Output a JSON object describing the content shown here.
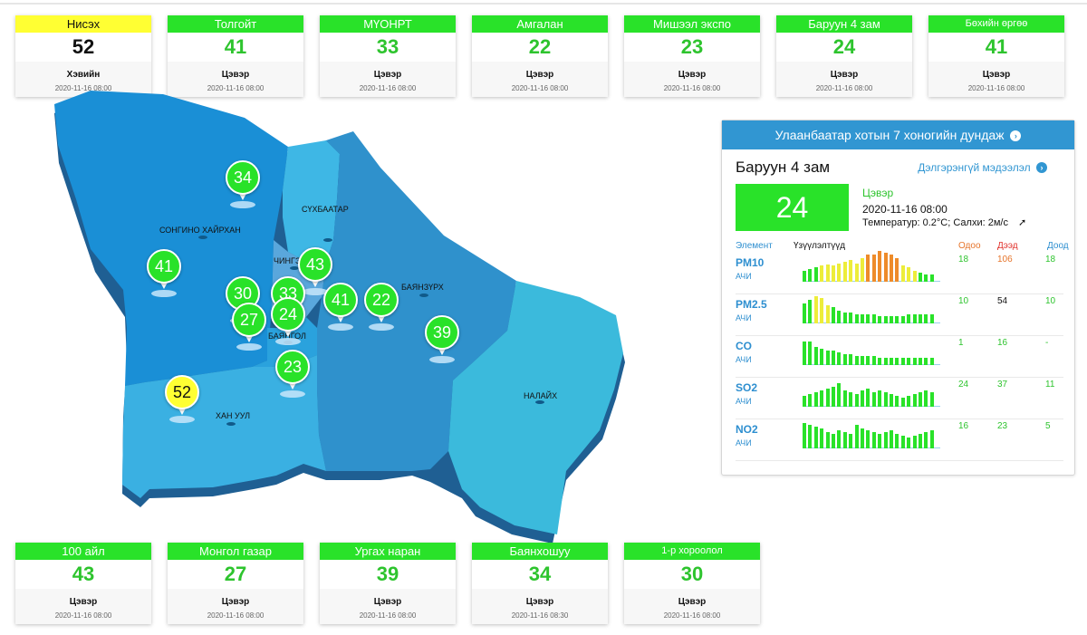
{
  "top_stations": [
    {
      "name": "Нисэх",
      "value": "52",
      "status": "Хэвийн",
      "time": "2020-11-16 08:00",
      "color": "#ffff33",
      "text_color": "#111111",
      "header_text": "#111111"
    },
    {
      "name": "Толгойт",
      "value": "41",
      "status": "Цэвэр",
      "time": "2020-11-16 08:00",
      "color": "#29e229",
      "text_color": "#2ec42e",
      "header_text": "#ffffff"
    },
    {
      "name": "МҮОНРТ",
      "value": "33",
      "status": "Цэвэр",
      "time": "2020-11-16 08:00",
      "color": "#29e229",
      "text_color": "#2ec42e",
      "header_text": "#ffffff"
    },
    {
      "name": "Амгалан",
      "value": "22",
      "status": "Цэвэр",
      "time": "2020-11-16 08:00",
      "color": "#29e229",
      "text_color": "#2ec42e",
      "header_text": "#ffffff"
    },
    {
      "name": "Мишээл экспо",
      "value": "23",
      "status": "Цэвэр",
      "time": "2020-11-16 08:00",
      "color": "#29e229",
      "text_color": "#2ec42e",
      "header_text": "#ffffff"
    },
    {
      "name": "Баруун 4 зам",
      "value": "24",
      "status": "Цэвэр",
      "time": "2020-11-16 08:00",
      "color": "#29e229",
      "text_color": "#2ec42e",
      "header_text": "#ffffff"
    },
    {
      "name": "Бөхийн өргөө",
      "value": "41",
      "status": "Цэвэр",
      "time": "2020-11-16 08:00",
      "color": "#29e229",
      "text_color": "#2ec42e",
      "header_text": "#ffffff"
    }
  ],
  "bottom_stations": [
    {
      "name": "100 айл",
      "value": "43",
      "status": "Цэвэр",
      "time": "2020-11-16 08:00",
      "color": "#29e229",
      "text_color": "#2ec42e",
      "header_text": "#ffffff"
    },
    {
      "name": "Монгол газар",
      "value": "27",
      "status": "Цэвэр",
      "time": "2020-11-16 08:00",
      "color": "#29e229",
      "text_color": "#2ec42e",
      "header_text": "#ffffff"
    },
    {
      "name": "Ургах наран",
      "value": "39",
      "status": "Цэвэр",
      "time": "2020-11-16 08:00",
      "color": "#29e229",
      "text_color": "#2ec42e",
      "header_text": "#ffffff"
    },
    {
      "name": "Баянхошуу",
      "value": "34",
      "status": "Цэвэр",
      "time": "2020-11-16 08:30",
      "color": "#29e229",
      "text_color": "#2ec42e",
      "header_text": "#ffffff"
    },
    {
      "name": "1-р хороолол",
      "value": "30",
      "status": "Цэвэр",
      "time": "2020-11-16 08:00",
      "color": "#29e229",
      "text_color": "#2ec42e",
      "header_text": "#ffffff"
    }
  ],
  "map": {
    "districts": [
      "СОНГИНО ХАЙРХАН",
      "СҮХБААТАР",
      "ЧИНГЭ",
      "БАЯНЗҮРХ",
      "БАЯНГОЛ",
      "ХАН УУЛ",
      "НАЛАЙХ"
    ],
    "markers": [
      "34",
      "41",
      "43",
      "30",
      "33",
      "27",
      "24",
      "41",
      "22",
      "39",
      "23",
      "52"
    ],
    "colors": {
      "green": "#29e229",
      "yellow": "#ffff33"
    }
  },
  "panel": {
    "header": "Улаанбаатар хотын 7 хоногийн дундаж",
    "station": "Баруун 4 зам",
    "detail_link": "Дэлгэрэнгүй мэдээлэл",
    "value": "24",
    "value_color": "#29e229",
    "status": "Цэвэр",
    "time": "2020-11-16 08:00",
    "weather": "Температур: 0.2°C; Салхи: 2м/с",
    "columns": {
      "element": "Элемент",
      "indicator": "Үзүүлэлтүүд",
      "current": "Одоо",
      "max": "Дээд",
      "min": "Доод"
    },
    "pollutants": [
      {
        "name": "PM10",
        "sub": "АЧИ",
        "current": "18",
        "max": "106",
        "min": "18",
        "max_color": "#e6742a"
      },
      {
        "name": "PM2.5",
        "sub": "АЧИ",
        "current": "10",
        "max": "54",
        "min": "10",
        "max_color": "#111111"
      },
      {
        "name": "CO",
        "sub": "АЧИ",
        "current": "1",
        "max": "16",
        "min": "-",
        "max_color": "#2ec42e"
      },
      {
        "name": "SO2",
        "sub": "АЧИ",
        "current": "24",
        "max": "37",
        "min": "11",
        "max_color": "#2ec42e"
      },
      {
        "name": "NO2",
        "sub": "АЧИ",
        "current": "16",
        "max": "23",
        "min": "5",
        "max_color": "#2ec42e"
      }
    ]
  }
}
